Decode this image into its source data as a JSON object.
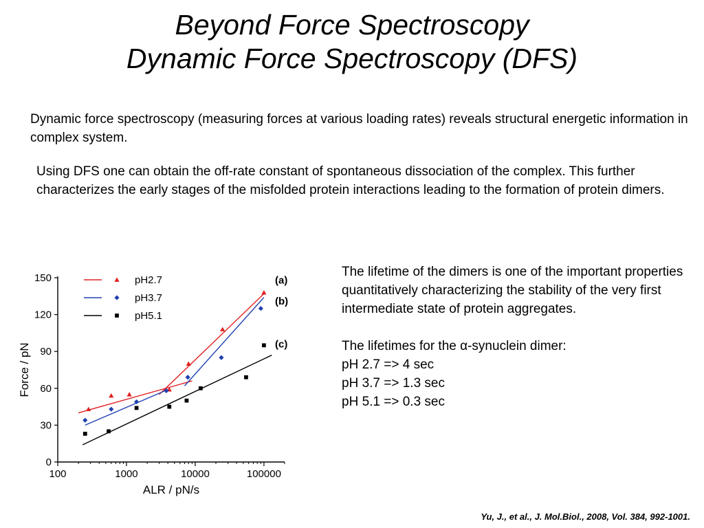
{
  "slide": {
    "title_line1": "Beyond Force Spectroscopy",
    "title_line2": "Dynamic Force Spectroscopy (DFS)",
    "paragraph1": "Dynamic force spectroscopy (measuring forces at various loading rates) reveals structural energetic information in complex system.",
    "paragraph2": "Using DFS one can obtain the off-rate constant of spontaneous dissociation of the complex. This further characterizes the early stages of the misfolded protein interactions leading to the formation of protein dimers.",
    "side_text1": "The lifetime of the dimers is one of the important properties quantitatively characterizing the stability of the very first intermediate state of protein aggregates.",
    "side_intro": "The lifetimes for the α-synuclein dimer:",
    "lifetimes": [
      "pH 2.7 => 4 sec",
      "pH 3.7 => 1.3 sec",
      "pH 5.1 => 0.3 sec"
    ],
    "citation": "Yu, J., et al., J. Mol.Biol., 2008, Vol. 384, 992-1001."
  },
  "chart_data": {
    "type": "scatter",
    "xlabel": "ALR / pN/s",
    "ylabel": "Force / pN",
    "xscale": "log",
    "xlim": [
      100,
      200000
    ],
    "ylim": [
      0,
      150
    ],
    "xticks": [
      100,
      1000,
      10000,
      100000
    ],
    "xtick_labels": [
      "100",
      "1000",
      "10000",
      "100000"
    ],
    "yticks": [
      0,
      30,
      60,
      90,
      120,
      150
    ],
    "ytick_labels": [
      "0",
      "30",
      "60",
      "90",
      "120",
      "150"
    ],
    "legend_position": "top-left",
    "series": [
      {
        "name": "pH2.7",
        "label": "(a)",
        "color": "#e02020",
        "marker": "triangle",
        "x": [
          280,
          600,
          1100,
          4200,
          8000,
          25000,
          100000
        ],
        "y": [
          43,
          54,
          55,
          59,
          80,
          108,
          138
        ],
        "fits": [
          {
            "x": [
              200,
              9000
            ],
            "y": [
              40,
              66
            ]
          },
          {
            "x": [
              3000,
              100000
            ],
            "y": [
              55,
              137
            ]
          }
        ]
      },
      {
        "name": "pH3.7",
        "label": "(b)",
        "color": "#2040b0",
        "marker": "diamond",
        "x": [
          250,
          600,
          1400,
          3800,
          7800,
          24000,
          90000
        ],
        "y": [
          34,
          43,
          49,
          58,
          69,
          85,
          125
        ],
        "fits": [
          {
            "x": [
              250,
              4000
            ],
            "y": [
              30,
              59
            ]
          },
          {
            "x": [
              7000,
              100000
            ],
            "y": [
              62,
              134
            ]
          }
        ]
      },
      {
        "name": "pH5.1",
        "label": "(c)",
        "color": "#000000",
        "marker": "square",
        "x": [
          250,
          550,
          1400,
          4200,
          7500,
          12000,
          55000,
          100000
        ],
        "y": [
          23,
          25,
          44,
          45,
          50,
          60,
          69,
          95
        ],
        "fits": [
          {
            "x": [
              230,
              130000
            ],
            "y": [
              14,
              87
            ]
          }
        ]
      }
    ]
  }
}
